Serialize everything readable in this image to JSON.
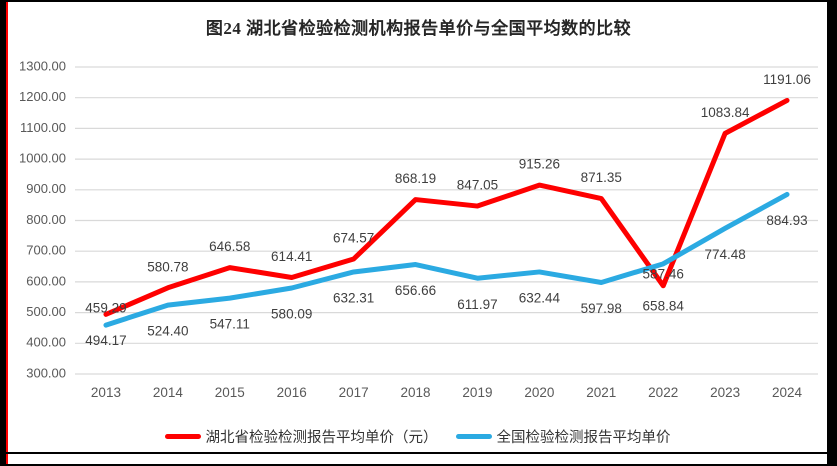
{
  "title": "图24 湖北省检验检测机构报告单价与全国平均数的比较",
  "colors": {
    "grid": "#D9D9D9",
    "axis_text": "#595959",
    "data_label": "#3F3F3F",
    "title_text": "#262626",
    "frame": "#000000",
    "accent_line": "#FF0000"
  },
  "chart_data": {
    "type": "line",
    "categories": [
      "2013",
      "2014",
      "2015",
      "2016",
      "2017",
      "2018",
      "2019",
      "2020",
      "2021",
      "2022",
      "2023",
      "2024"
    ],
    "series": [
      {
        "name": "湖北省检验检测报告平均单价（元）",
        "color": "#FE0000",
        "values": [
          494.17,
          580.78,
          646.58,
          614.41,
          674.57,
          868.19,
          847.05,
          915.26,
          871.35,
          587.46,
          1083.84,
          1191.06
        ]
      },
      {
        "name": "全国检验检测报告平均单价",
        "color": "#2BAAE2",
        "values": [
          459.29,
          524.4,
          547.11,
          580.09,
          632.31,
          656.66,
          611.97,
          632.44,
          597.98,
          658.84,
          774.48,
          884.93
        ]
      }
    ],
    "title": "图24 湖北省检验检测机构报告单价与全国平均数的比较",
    "xlabel": "",
    "ylabel": "",
    "ylim": [
      300,
      1300
    ],
    "ytick_step": 100,
    "ytick_decimals": 2,
    "value_label_decimals": 2,
    "grid": true,
    "legend_position": "bottom"
  }
}
